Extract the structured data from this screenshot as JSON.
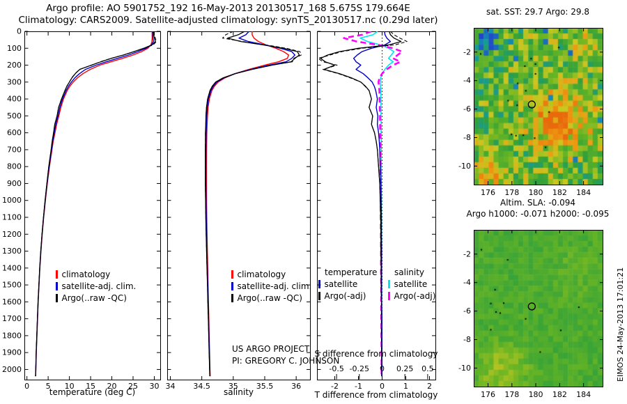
{
  "titles": {
    "line1": "Argo profile: AO 5901752_192 16-May-2013 20130517_168 5.675S 179.664E",
    "line2": "Climatology: CARS2009. Satellite-adjusted climatology: synTS_20130517.nc (0.29d later)"
  },
  "colors": {
    "climatology": "#ff0000",
    "satellite": "#0000cc",
    "argo": "#000000",
    "sal_satellite": "#00e5ee",
    "sal_argo": "#ff00ff",
    "background": "#ffffff"
  },
  "legends": {
    "profile": [
      {
        "label": "climatology",
        "color": "#ff0000"
      },
      {
        "label": "satellite-adj. clim.",
        "color": "#0000cc"
      },
      {
        "label": "Argo(..raw -QC)",
        "color": "#000000"
      }
    ],
    "diff": {
      "temperature_header": "temperature",
      "salinity_header": "salinity",
      "t_items": [
        {
          "label": "satellite",
          "color": "#0000cc"
        },
        {
          "label": "Argo(-adj)",
          "color": "#000000"
        }
      ],
      "s_items": [
        {
          "label": "satellite",
          "color": "#00e5ee"
        },
        {
          "label": "Argo(-adj)",
          "color": "#ff00ff"
        }
      ]
    }
  },
  "annotations": {
    "project": "US ARGO PROJECT",
    "pi": "PI: GREGORY C. JOHNSON",
    "sla_line1": "Altim. SLA: -0.094",
    "sla_line2": "Argo h1000: -0.071 h2000: -0.095",
    "stamp": "EIMOS 24-May-2013 17:01:21"
  },
  "chart_data": {
    "type": "line",
    "description": "Argo float profiles vs climatology with satellite-adjusted climatology, plus SST and SLA maps",
    "depth_ticks": [
      0,
      100,
      200,
      300,
      400,
      500,
      600,
      700,
      800,
      900,
      1000,
      1100,
      1200,
      1300,
      1400,
      1500,
      1600,
      1700,
      1800,
      1900,
      2000
    ],
    "depth_db": [
      0,
      20,
      40,
      60,
      80,
      100,
      120,
      140,
      160,
      180,
      200,
      225,
      250,
      275,
      300,
      325,
      350,
      400,
      450,
      500,
      550,
      600,
      650,
      700,
      800,
      900,
      1000,
      1100,
      1200,
      1300,
      1400,
      1500,
      1600,
      1700,
      1800,
      1900,
      2000,
      2040
    ],
    "temperature": {
      "xlabel": "temperature (deg C)",
      "x_ticks": [
        0,
        5,
        10,
        15,
        20,
        25,
        30
      ],
      "xlim": [
        -0.6,
        31.4
      ],
      "climatology": [
        29.5,
        29.5,
        29.5,
        29.45,
        29.2,
        28.5,
        27.0,
        25.0,
        22.5,
        19.8,
        17.2,
        14.9,
        13.2,
        11.9,
        10.9,
        10.1,
        9.5,
        8.6,
        8.0,
        7.5,
        7.0,
        6.6,
        6.2,
        5.9,
        5.3,
        4.8,
        4.35,
        3.95,
        3.6,
        3.3,
        3.05,
        2.85,
        2.65,
        2.5,
        2.35,
        2.2,
        2.1,
        2.05
      ],
      "argo_minus_clim": [
        0.3,
        0.35,
        0.5,
        0.8,
        0.3,
        -1.0,
        -1.8,
        -2.3,
        -2.6,
        -2.4,
        -2.0,
        -2.45,
        -1.8,
        -1.3,
        -0.9,
        -0.7,
        -0.55,
        -0.45,
        -0.55,
        -0.4,
        -0.45,
        -0.32,
        -0.25,
        -0.2,
        -0.15,
        -0.1,
        -0.08,
        -0.06,
        -0.05,
        -0.05,
        -0.04,
        -0.04,
        -0.03,
        -0.03,
        -0.03,
        -0.02,
        -0.02,
        -0.02
      ],
      "satellite_minus_clim": [
        0.1,
        0.12,
        0.2,
        0.35,
        0.12,
        -0.45,
        -0.85,
        -1.05,
        -1.2,
        -1.1,
        -0.9,
        -1.1,
        -0.8,
        -0.6,
        -0.42,
        -0.33,
        -0.27,
        -0.2,
        -0.25,
        -0.18,
        -0.2,
        -0.15,
        -0.12,
        -0.1,
        -0.08,
        -0.05,
        -0.04,
        -0.03,
        -0.03,
        -0.02,
        -0.02,
        -0.02,
        -0.02,
        -0.01,
        -0.01,
        -0.01,
        -0.01,
        -0.01
      ],
      "argo_raw_minus_clim": [
        0.35,
        0.5,
        0.75,
        1.05,
        0.55,
        -0.85,
        -1.7,
        -2.2,
        -2.7,
        -2.5,
        -1.9,
        -2.5,
        -1.85,
        -1.35,
        -0.9,
        -0.72,
        -0.55,
        -0.45,
        -0.55,
        -0.4,
        -0.45,
        -0.32,
        -0.25,
        -0.2,
        -0.15,
        -0.1,
        -0.08,
        -0.06,
        -0.05,
        -0.05,
        -0.04,
        -0.04,
        -0.03,
        -0.03,
        -0.03,
        -0.02,
        -0.02,
        -0.02
      ]
    },
    "salinity": {
      "xlabel": "salinity",
      "x_ticks": [
        34,
        34.5,
        35,
        35.5,
        36
      ],
      "xlim": [
        33.95,
        36.22
      ],
      "climatology": [
        35.3,
        35.3,
        35.33,
        35.4,
        35.52,
        35.68,
        35.8,
        35.88,
        35.86,
        35.72,
        35.5,
        35.25,
        35.03,
        34.87,
        34.76,
        34.7,
        34.66,
        34.62,
        34.6,
        34.59,
        34.585,
        34.58,
        34.578,
        34.576,
        34.574,
        34.574,
        34.576,
        34.579,
        34.583,
        34.588,
        34.594,
        34.6,
        34.606,
        34.612,
        34.618,
        34.624,
        34.63,
        34.633
      ],
      "argo_minus_clim": [
        -0.12,
        -0.22,
        -0.42,
        -0.28,
        -0.05,
        0.12,
        0.22,
        0.17,
        0.12,
        0.2,
        0.12,
        0.05,
        0.0,
        -0.03,
        -0.04,
        -0.035,
        -0.03,
        -0.028,
        -0.026,
        -0.024,
        -0.022,
        -0.022,
        -0.02,
        -0.02,
        -0.018,
        -0.018,
        -0.016,
        -0.015,
        -0.014,
        -0.012,
        -0.012,
        -0.01,
        -0.01,
        -0.009,
        -0.008,
        -0.007,
        -0.006,
        -0.006
      ],
      "satellite_minus_clim": [
        -0.05,
        -0.1,
        -0.24,
        -0.16,
        -0.02,
        0.07,
        0.13,
        0.1,
        0.07,
        0.12,
        0.07,
        0.03,
        0.0,
        -0.015,
        -0.02,
        -0.018,
        -0.015,
        -0.014,
        -0.013,
        -0.012,
        -0.011,
        -0.011,
        -0.01,
        -0.01,
        -0.009,
        -0.009,
        -0.008,
        -0.008,
        -0.007,
        -0.006,
        -0.006,
        -0.005,
        -0.005,
        -0.004,
        -0.004,
        -0.004,
        -0.003,
        -0.003
      ],
      "argo_raw_minus_clim": [
        -0.3,
        -0.42,
        -0.5,
        -0.25,
        0.0,
        0.16,
        0.26,
        0.2,
        0.1,
        0.22,
        0.1,
        0.05,
        0.0,
        -0.03,
        -0.04,
        -0.035,
        -0.03,
        -0.028,
        -0.026,
        -0.024,
        -0.022,
        -0.022,
        -0.02,
        -0.02,
        -0.018,
        -0.018,
        -0.016,
        -0.015,
        -0.014,
        -0.012,
        -0.012,
        -0.01,
        -0.01,
        -0.009,
        -0.008,
        -0.007,
        -0.006,
        -0.006
      ]
    },
    "difference_panel": {
      "t_axis_label": "T difference from climatology",
      "s_axis_label": "S difference from climatology",
      "t_ticks": [
        -2,
        -1,
        0,
        1,
        2
      ],
      "s_ticks": [
        -0.5,
        -0.25,
        0,
        0.25,
        0.5
      ],
      "t_lim": [
        -2.75,
        2.25
      ],
      "s_lim": [
        -0.715,
        0.585
      ]
    },
    "maps": {
      "sst_map": {
        "type": "heatmap",
        "title": "sat. SST: 29.7 Argo: 29.8",
        "sat_sst": 29.7,
        "argo_sst": 29.8,
        "x_ticks": [
          176,
          178,
          180,
          182,
          184
        ],
        "y_ticks": [
          -2,
          -4,
          -6,
          -8,
          -10
        ],
        "marker_lon": 179.664,
        "marker_lat": -5.675
      },
      "sla_map": {
        "type": "heatmap",
        "altim_sla": -0.094,
        "argo_h1000": -0.071,
        "argo_h2000": -0.095,
        "x_ticks": [
          176,
          178,
          180,
          182,
          184
        ],
        "y_ticks": [
          -2,
          -4,
          -6,
          -8,
          -10
        ],
        "marker_lon": 179.664,
        "marker_lat": -5.675
      }
    }
  }
}
